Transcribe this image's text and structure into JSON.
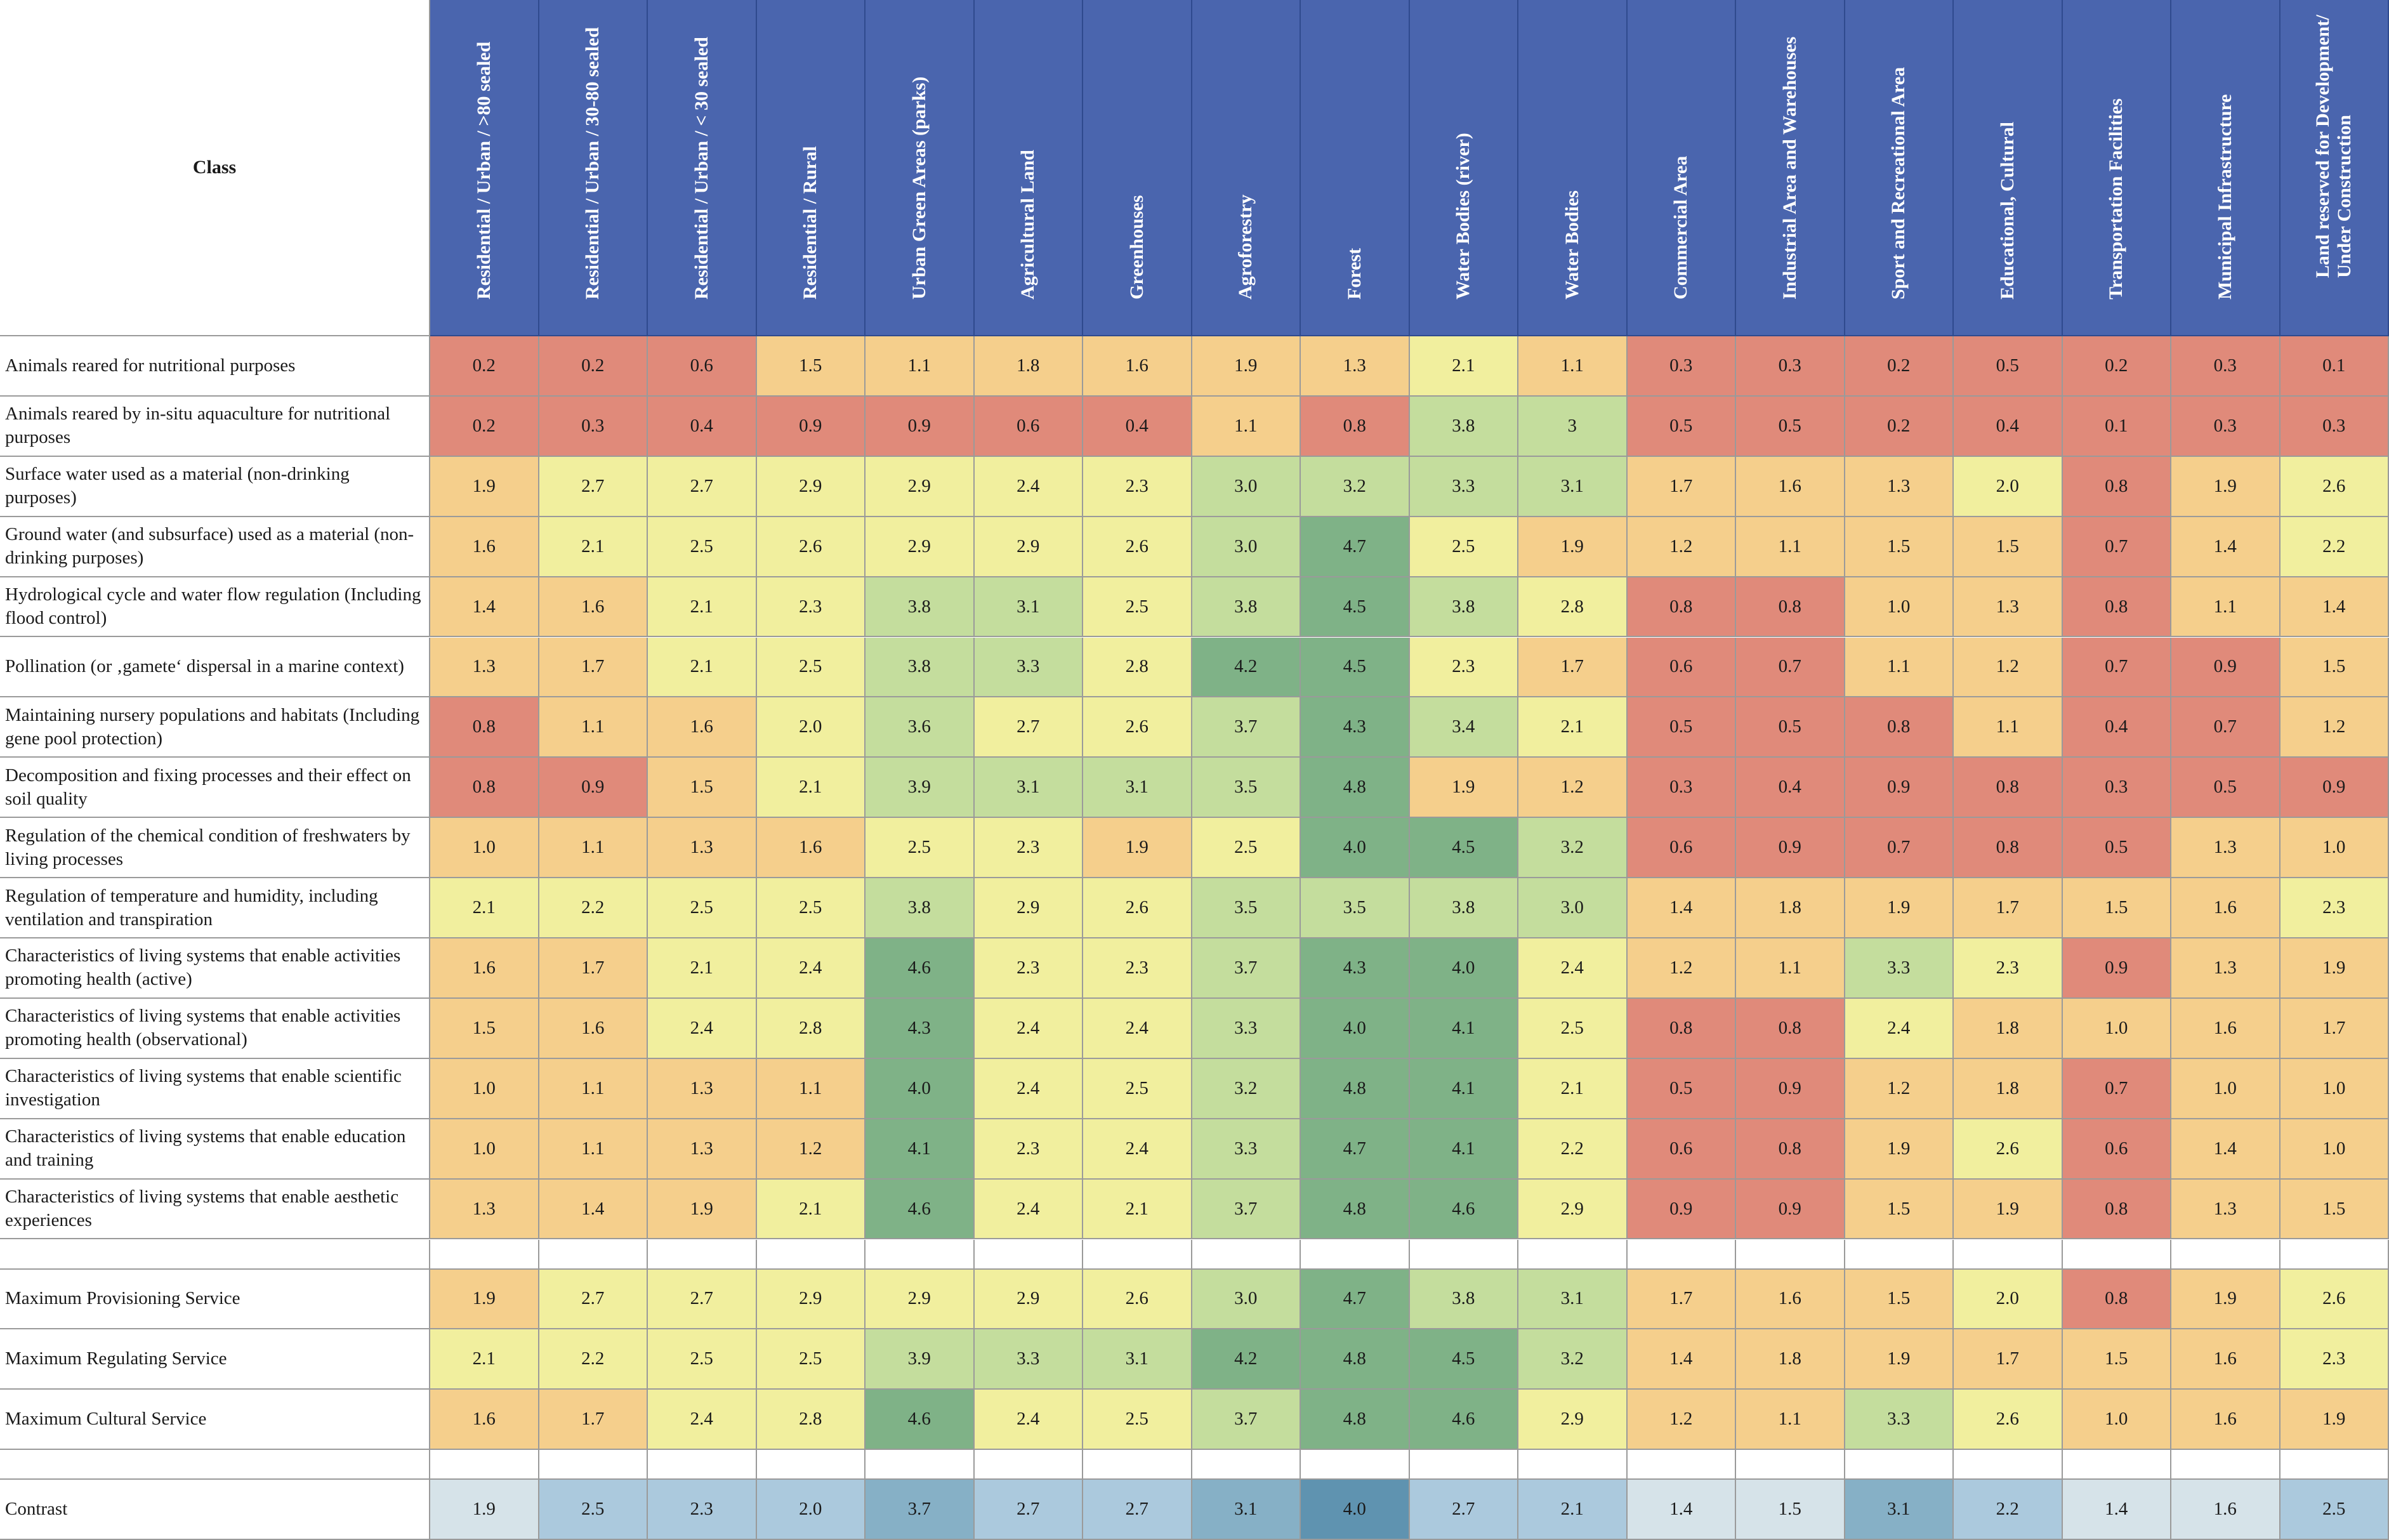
{
  "chart_data": {
    "type": "heatmap",
    "title": "",
    "corner_label": "Class",
    "columns": [
      "Residential / Urban / >80 sealed",
      "Residential / Urban / 30-80 sealed",
      "Residential / Urban / < 30 sealed",
      "Residential / Rural",
      "Urban Green Areas (parks)",
      "Agricultural Land",
      "Greenhouses",
      "Agroforestry",
      "Forest",
      "Water Bodies (river)",
      "Water Bodies",
      "Commercial Area",
      "Industrial Area and Warehouses",
      "Sport and Recreational Area",
      "Educational, Cultural",
      "Transportation Facilities",
      "Municipal Infrastructure",
      "Land reserved for Development/ Under Construction"
    ],
    "rows": [
      {
        "label": "Animals reared for nutritional purposes",
        "display": [
          "0.2",
          "0.2",
          "0.6",
          "1.5",
          "1.1",
          "1.8",
          "1.6",
          "1.9",
          "1.3",
          "2.1",
          "1.1",
          "0.3",
          "0.3",
          "0.2",
          "0.5",
          "0.2",
          "0.3",
          "0.1"
        ]
      },
      {
        "label": "Animals reared by in-situ aquaculture for nutritional purposes",
        "display": [
          "0.2",
          "0.3",
          "0.4",
          "0.9",
          "0.9",
          "0.6",
          "0.4",
          "1.1",
          "0.8",
          "3.8",
          "3",
          "0.5",
          "0.5",
          "0.2",
          "0.4",
          "0.1",
          "0.3",
          "0.3"
        ]
      },
      {
        "label": "Surface water used as a material (non-drinking purposes)",
        "display": [
          "1.9",
          "2.7",
          "2.7",
          "2.9",
          "2.9",
          "2.4",
          "2.3",
          "3.0",
          "3.2",
          "3.3",
          "3.1",
          "1.7",
          "1.6",
          "1.3",
          "2.0",
          "0.8",
          "1.9",
          "2.6"
        ]
      },
      {
        "label": "Ground water (and subsurface)  used as a material (non-drinking purposes)",
        "display": [
          "1.6",
          "2.1",
          "2.5",
          "2.6",
          "2.9",
          "2.9",
          "2.6",
          "3.0",
          "4.7",
          "2.5",
          "1.9",
          "1.2",
          "1.1",
          "1.5",
          "1.5",
          "0.7",
          "1.4",
          "2.2"
        ]
      },
      {
        "label": "Hydrological cycle and water flow regulation (Including flood control)",
        "display": [
          "1.4",
          "1.6",
          "2.1",
          "2.3",
          "3.8",
          "3.1",
          "2.5",
          "3.8",
          "4.5",
          "3.8",
          "2.8",
          "0.8",
          "0.8",
          "1.0",
          "1.3",
          "0.8",
          "1.1",
          "1.4"
        ]
      },
      {
        "label": "Pollination (or ‚gamete‘ dispersal in a marine context)",
        "display": [
          "1.3",
          "1.7",
          "2.1",
          "2.5",
          "3.8",
          "3.3",
          "2.8",
          "4.2",
          "4.5",
          "2.3",
          "1.7",
          "0.6",
          "0.7",
          "1.1",
          "1.2",
          "0.7",
          "0.9",
          "1.5"
        ]
      },
      {
        "label": "Maintaining nursery populations and habitats (Including gene pool protection)",
        "display": [
          "0.8",
          "1.1",
          "1.6",
          "2.0",
          "3.6",
          "2.7",
          "2.6",
          "3.7",
          "4.3",
          "3.4",
          "2.1",
          "0.5",
          "0.5",
          "0.8",
          "1.1",
          "0.4",
          "0.7",
          "1.2"
        ]
      },
      {
        "label": "Decomposition and fixing processes and their effect on soil quality",
        "display": [
          "0.8",
          "0.9",
          "1.5",
          "2.1",
          "3.9",
          "3.1",
          "3.1",
          "3.5",
          "4.8",
          "1.9",
          "1.2",
          "0.3",
          "0.4",
          "0.9",
          "0.8",
          "0.3",
          "0.5",
          "0.9"
        ]
      },
      {
        "label": "Regulation of the chemical condition of freshwaters by living processes",
        "display": [
          "1.0",
          "1.1",
          "1.3",
          "1.6",
          "2.5",
          "2.3",
          "1.9",
          "2.5",
          "4.0",
          "4.5",
          "3.2",
          "0.6",
          "0.9",
          "0.7",
          "0.8",
          "0.5",
          "1.3",
          "1.0"
        ]
      },
      {
        "label": "Regulation of temperature and humidity, including ventilation and transpiration",
        "display": [
          "2.1",
          "2.2",
          "2.5",
          "2.5",
          "3.8",
          "2.9",
          "2.6",
          "3.5",
          "3.5",
          "3.8",
          "3.0",
          "1.4",
          "1.8",
          "1.9",
          "1.7",
          "1.5",
          "1.6",
          "2.3"
        ]
      },
      {
        "label": "Characteristics of living systems that enable activities promoting health (active)",
        "display": [
          "1.6",
          "1.7",
          "2.1",
          "2.4",
          "4.6",
          "2.3",
          "2.3",
          "3.7",
          "4.3",
          "4.0",
          "2.4",
          "1.2",
          "1.1",
          "3.3",
          "2.3",
          "0.9",
          "1.3",
          "1.9"
        ]
      },
      {
        "label": "Characteristics of living systems that enable activities promoting health (observational)",
        "display": [
          "1.5",
          "1.6",
          "2.4",
          "2.8",
          "4.3",
          "2.4",
          "2.4",
          "3.3",
          "4.0",
          "4.1",
          "2.5",
          "0.8",
          "0.8",
          "2.4",
          "1.8",
          "1.0",
          "1.6",
          "1.7"
        ]
      },
      {
        "label": "Characteristics of living systems that enable scientific investigation",
        "display": [
          "1.0",
          "1.1",
          "1.3",
          "1.1",
          "4.0",
          "2.4",
          "2.5",
          "3.2",
          "4.8",
          "4.1",
          "2.1",
          "0.5",
          "0.9",
          "1.2",
          "1.8",
          "0.7",
          "1.0",
          "1.0"
        ]
      },
      {
        "label": "Characteristics of living systems that enable education and training",
        "display": [
          "1.0",
          "1.1",
          "1.3",
          "1.2",
          "4.1",
          "2.3",
          "2.4",
          "3.3",
          "4.7",
          "4.1",
          "2.2",
          "0.6",
          "0.8",
          "1.9",
          "2.6",
          "0.6",
          "1.4",
          "1.0"
        ]
      },
      {
        "label": "Characteristics of living systems that enable aesthetic experiences",
        "display": [
          "1.3",
          "1.4",
          "1.9",
          "2.1",
          "4.6",
          "2.4",
          "2.1",
          "3.7",
          "4.8",
          "4.6",
          "2.9",
          "0.9",
          "0.9",
          "1.5",
          "1.9",
          "0.8",
          "1.3",
          "1.5"
        ]
      }
    ],
    "summary_rows": [
      {
        "label": "Maximum Provisioning Service",
        "display": [
          "1.9",
          "2.7",
          "2.7",
          "2.9",
          "2.9",
          "2.9",
          "2.6",
          "3.0",
          "4.7",
          "3.8",
          "3.1",
          "1.7",
          "1.6",
          "1.5",
          "2.0",
          "0.8",
          "1.9",
          "2.6"
        ]
      },
      {
        "label": "Maximum Regulating Service",
        "display": [
          "2.1",
          "2.2",
          "2.5",
          "2.5",
          "3.9",
          "3.3",
          "3.1",
          "4.2",
          "4.8",
          "4.5",
          "3.2",
          "1.4",
          "1.8",
          "1.9",
          "1.7",
          "1.5",
          "1.6",
          "2.3"
        ]
      },
      {
        "label": "Maximum Cultural Service",
        "display": [
          "1.6",
          "1.7",
          "2.4",
          "2.8",
          "4.6",
          "2.4",
          "2.5",
          "3.7",
          "4.8",
          "4.6",
          "2.9",
          "1.2",
          "1.1",
          "3.3",
          "2.6",
          "1.0",
          "1.6",
          "1.9"
        ]
      }
    ],
    "contrast_row": {
      "label": "Contrast",
      "display": [
        "1.9",
        "2.5",
        "2.3",
        "2.0",
        "3.7",
        "2.7",
        "2.7",
        "3.1",
        "4.0",
        "2.7",
        "2.1",
        "1.4",
        "1.5",
        "3.1",
        "2.2",
        "1.4",
        "1.6",
        "2.5"
      ]
    },
    "color_scale": {
      "main": [
        {
          "max": 0.95,
          "color": "#e08a7a"
        },
        {
          "max": 1.95,
          "color": "#f5cf8c"
        },
        {
          "max": 2.95,
          "color": "#f1ef9e"
        },
        {
          "max": 3.95,
          "color": "#c4dd9d"
        },
        {
          "max": 99,
          "color": "#7fb287"
        }
      ],
      "contrast": [
        {
          "max": 1.95,
          "color": "#d6e3e9"
        },
        {
          "max": 2.95,
          "color": "#abc9dd"
        },
        {
          "max": 3.95,
          "color": "#86b0c6"
        },
        {
          "max": 99,
          "color": "#5f93b0"
        }
      ]
    }
  }
}
